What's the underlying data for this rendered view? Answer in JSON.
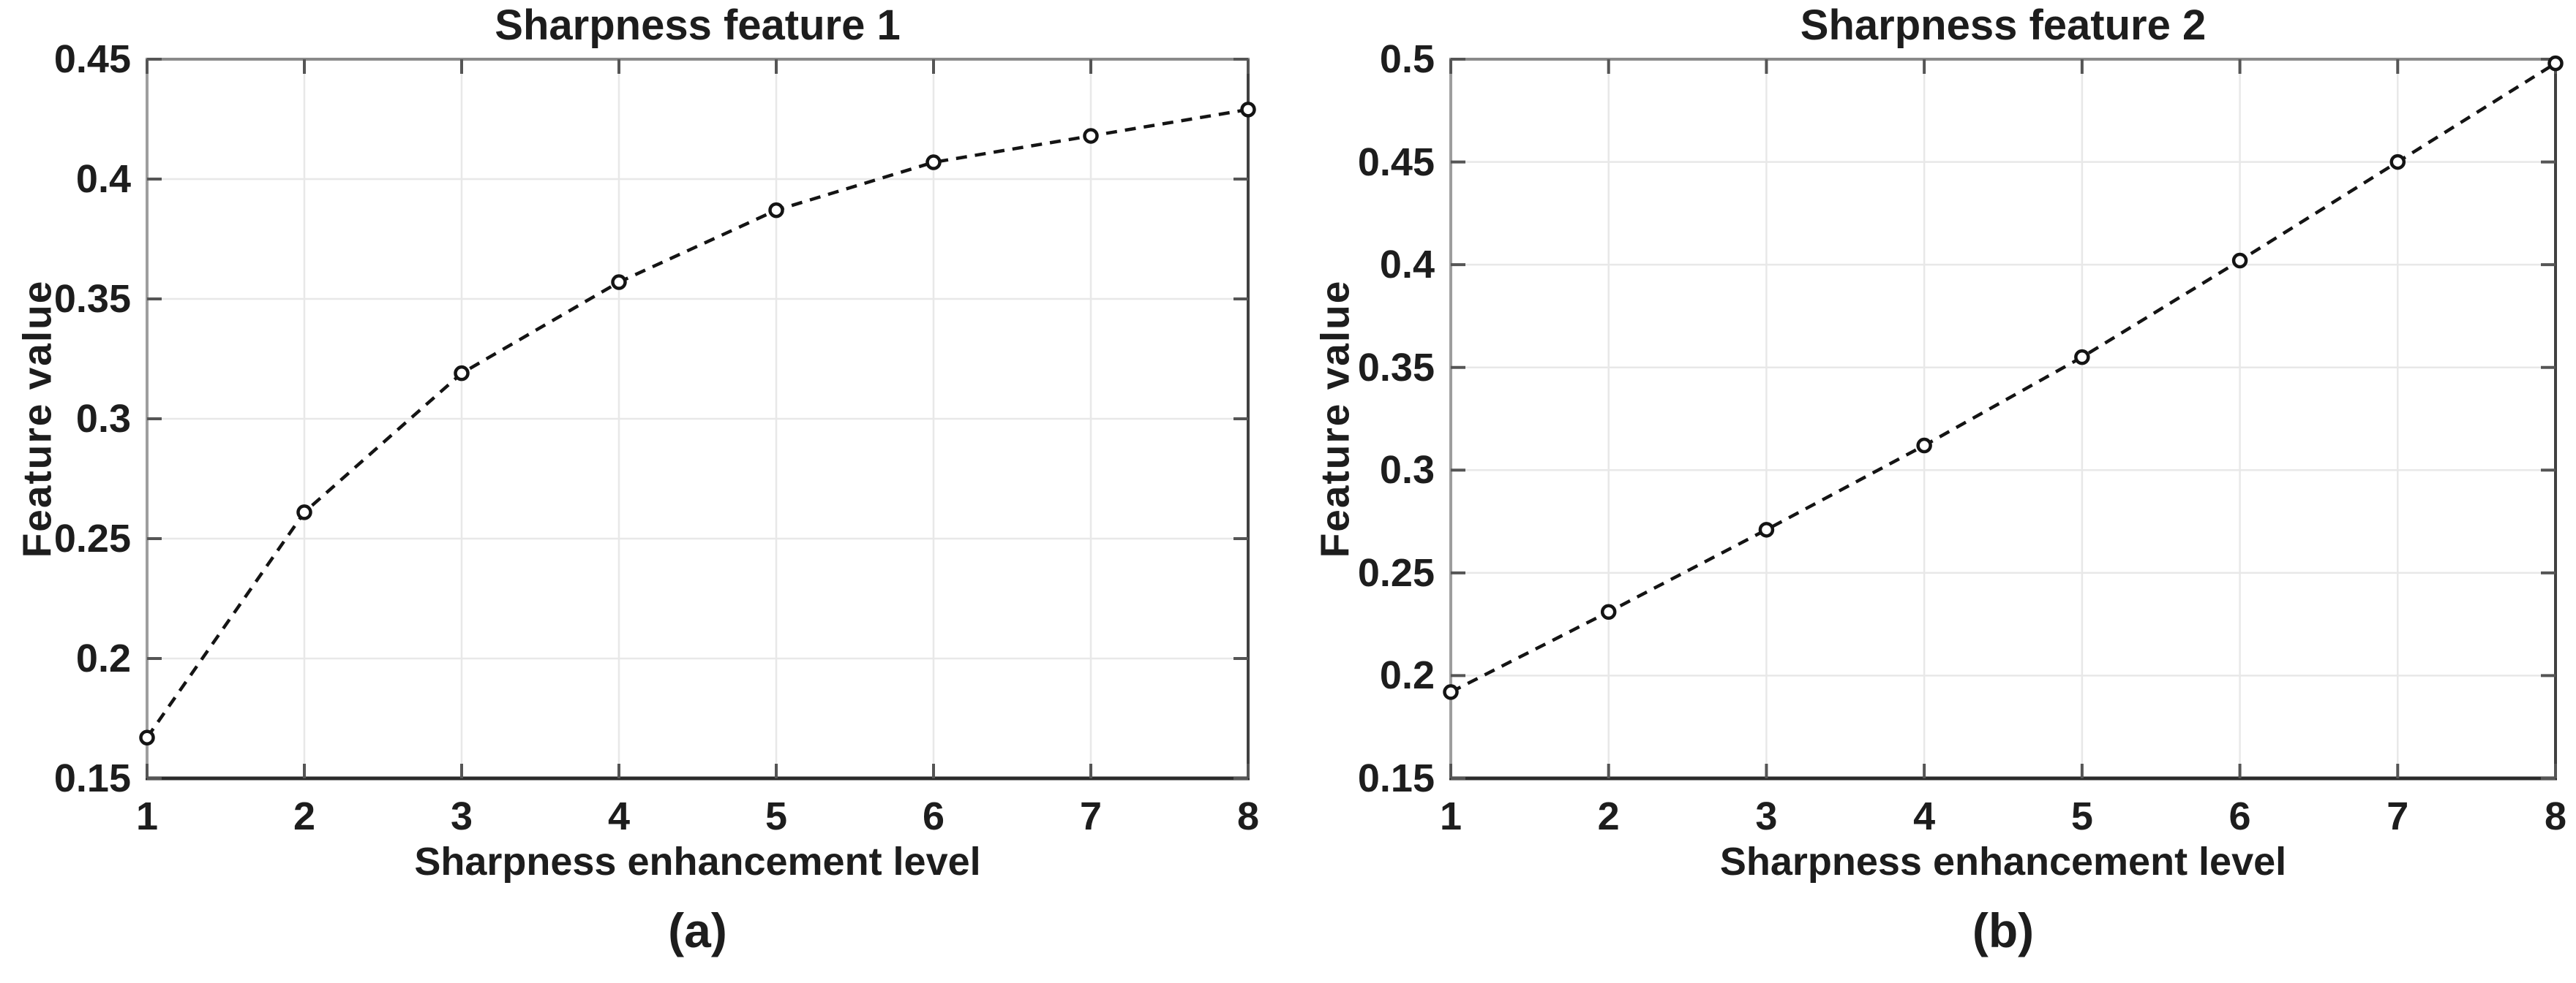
{
  "figure": {
    "background": "#ffffff"
  },
  "chart_data": [
    {
      "id": "a",
      "type": "line",
      "title": "Sharpness feature 1",
      "xlabel": "Sharpness enhancement level",
      "ylabel": "Feature value",
      "caption": "(a)",
      "x": [
        1,
        2,
        3,
        4,
        5,
        6,
        7,
        8
      ],
      "y": [
        0.167,
        0.261,
        0.319,
        0.357,
        0.387,
        0.407,
        0.418,
        0.429
      ],
      "xlim": [
        1,
        8
      ],
      "ylim": [
        0.15,
        0.45
      ],
      "xtick_labels": [
        "1",
        "2",
        "3",
        "4",
        "5",
        "6",
        "7",
        "8"
      ],
      "ytick_values": [
        0.15,
        0.2,
        0.25,
        0.3,
        0.35,
        0.4,
        0.45
      ],
      "ytick_labels": [
        "0.15",
        "0.2",
        "0.25",
        "0.3",
        "0.35",
        "0.4",
        "0.45"
      ],
      "grid": true,
      "legend": "none",
      "line_style": "dashed",
      "marker": "open-circle"
    },
    {
      "id": "b",
      "type": "line",
      "title": "Sharpness feature 2",
      "xlabel": "Sharpness enhancement level",
      "ylabel": "Feature value",
      "caption": "(b)",
      "x": [
        1,
        2,
        3,
        4,
        5,
        6,
        7,
        8
      ],
      "y": [
        0.192,
        0.231,
        0.271,
        0.312,
        0.355,
        0.402,
        0.45,
        0.498
      ],
      "xlim": [
        1,
        8
      ],
      "ylim": [
        0.15,
        0.5
      ],
      "xtick_labels": [
        "1",
        "2",
        "3",
        "4",
        "5",
        "6",
        "7",
        "8"
      ],
      "ytick_values": [
        0.15,
        0.2,
        0.25,
        0.3,
        0.35,
        0.4,
        0.45,
        0.5
      ],
      "ytick_labels": [
        "0.15",
        "0.2",
        "0.25",
        "0.3",
        "0.35",
        "0.4",
        "0.45",
        "0.5"
      ],
      "grid": true,
      "legend": "none",
      "line_style": "dashed",
      "marker": "open-circle"
    }
  ],
  "style": {
    "text_color": "#1d1d1d",
    "line_color": "#141414",
    "marker_fill": "#ffffff",
    "grid_color": "#e8e8e8",
    "box_top_color": "#8a8a8a",
    "box_left_color": "#9e9e9e",
    "box_right_color": "#404040",
    "axis_bottom_color": "#2b2b2b",
    "tick_color": "#555555"
  }
}
